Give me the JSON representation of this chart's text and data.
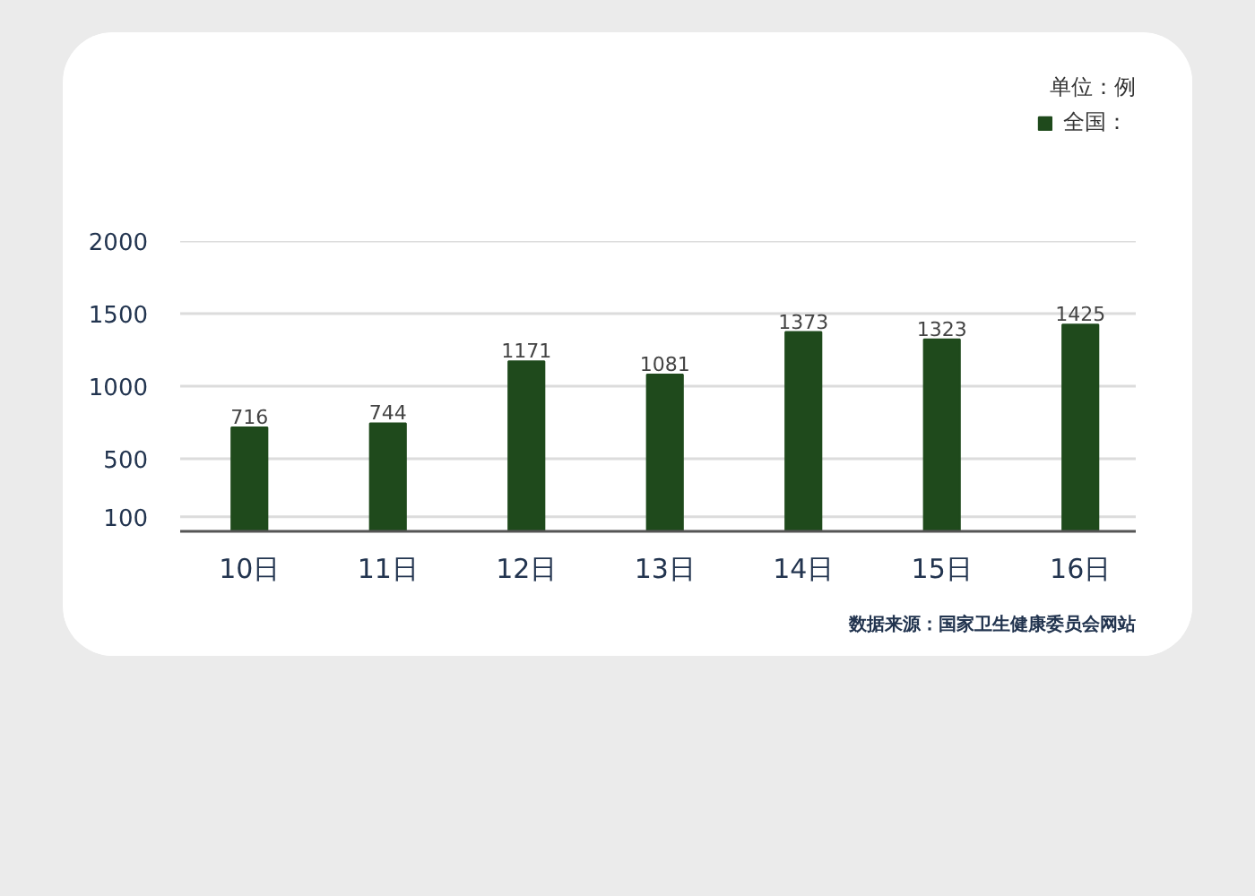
{
  "chart_data": {
    "type": "bar",
    "subtitle": "单位：例",
    "annotations": [
      "数据来源：国家卫生健康委员会网站"
    ],
    "categories": [
      "10日",
      "11日",
      "12日",
      "13日",
      "14日",
      "15日",
      "16日"
    ],
    "series": [
      {
        "name": "全国：",
        "color": "#1f4a1c",
        "values": [
          716,
          744,
          1171,
          1081,
          1373,
          1323,
          1425
        ]
      }
    ],
    "ylim": [
      0,
      2000
    ],
    "yticks": [
      100,
      500,
      1000,
      1500,
      2000
    ],
    "grid": "y",
    "legend": "top right",
    "data_labels": true
  }
}
